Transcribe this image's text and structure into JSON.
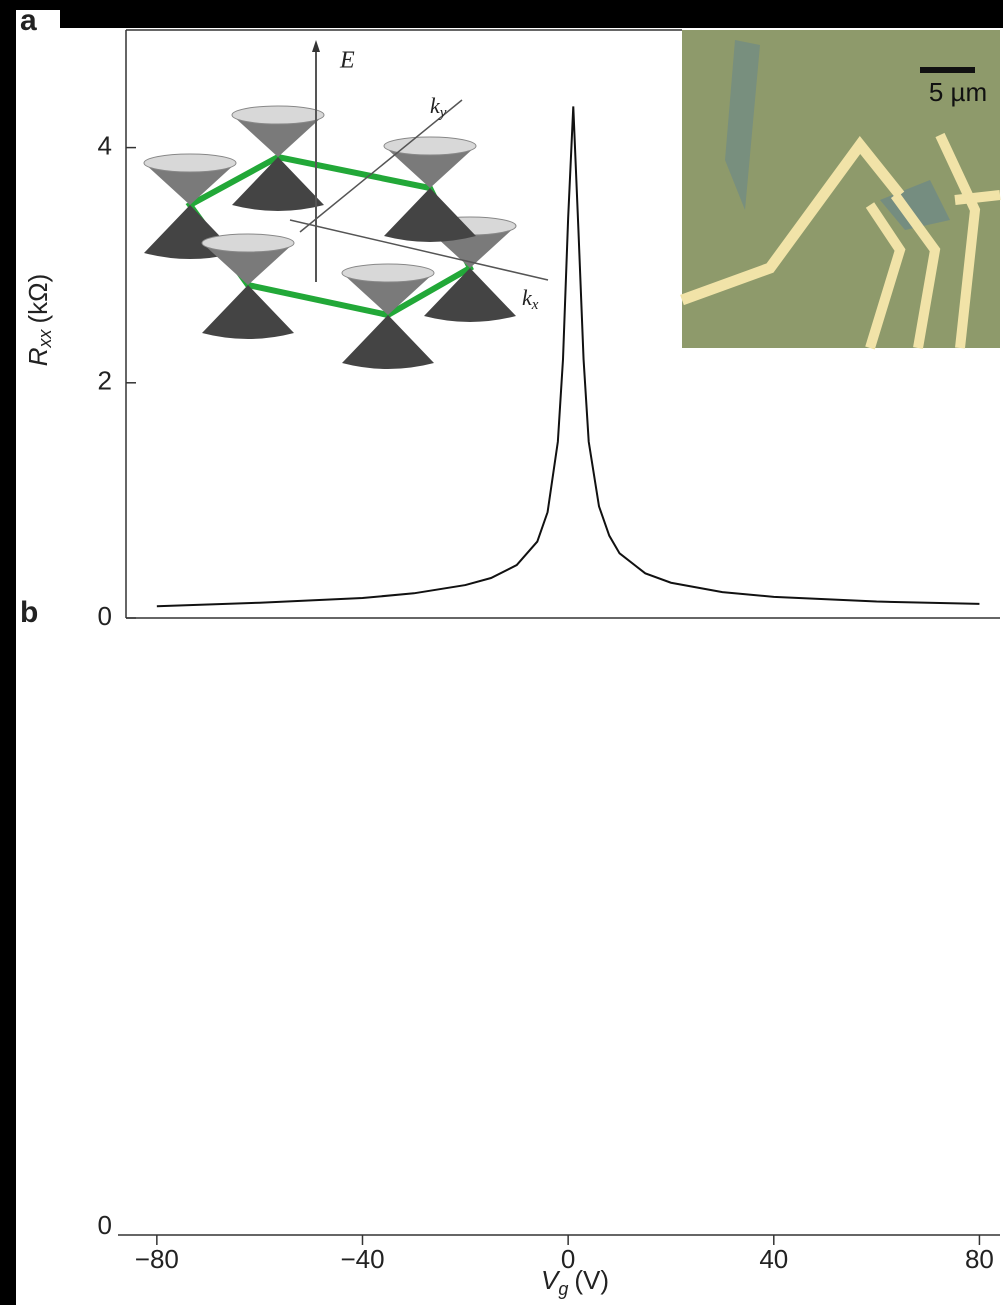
{
  "chart_data": {
    "type": "line",
    "panel_label": "a",
    "ylabel_parts": [
      "R",
      "xx",
      "(kΩ)"
    ],
    "xlabel_parts": [
      "V",
      "g",
      "(V)"
    ],
    "x": [
      -80,
      -60,
      -40,
      -30,
      -20,
      -15,
      -10,
      -6,
      -4,
      -2,
      -1,
      0,
      1,
      2,
      3,
      4,
      6,
      8,
      10,
      15,
      20,
      30,
      40,
      60,
      80
    ],
    "series": [
      {
        "name": "Rxx",
        "color": "#111111",
        "values": [
          0.1,
          0.13,
          0.17,
          0.21,
          0.28,
          0.34,
          0.45,
          0.65,
          0.9,
          1.5,
          2.2,
          3.4,
          4.35,
          3.3,
          2.2,
          1.5,
          0.95,
          0.7,
          0.55,
          0.38,
          0.3,
          0.22,
          0.18,
          0.14,
          0.12
        ]
      }
    ],
    "xlim": [
      -86,
      84
    ],
    "ylim": [
      0,
      5
    ],
    "yticks": [
      0,
      2,
      4
    ],
    "xticks": [
      {
        "value": -80,
        "label": "−80"
      },
      {
        "value": -40,
        "label": "−40"
      },
      0,
      40,
      80
    ],
    "inset_labels": {
      "energy": "E",
      "ky": [
        "k",
        "y"
      ],
      "kx": [
        "k",
        "x"
      ],
      "scale_bar": "5 µm"
    }
  },
  "panel_b": {
    "label": "b",
    "yticks": [
      0
    ]
  }
}
